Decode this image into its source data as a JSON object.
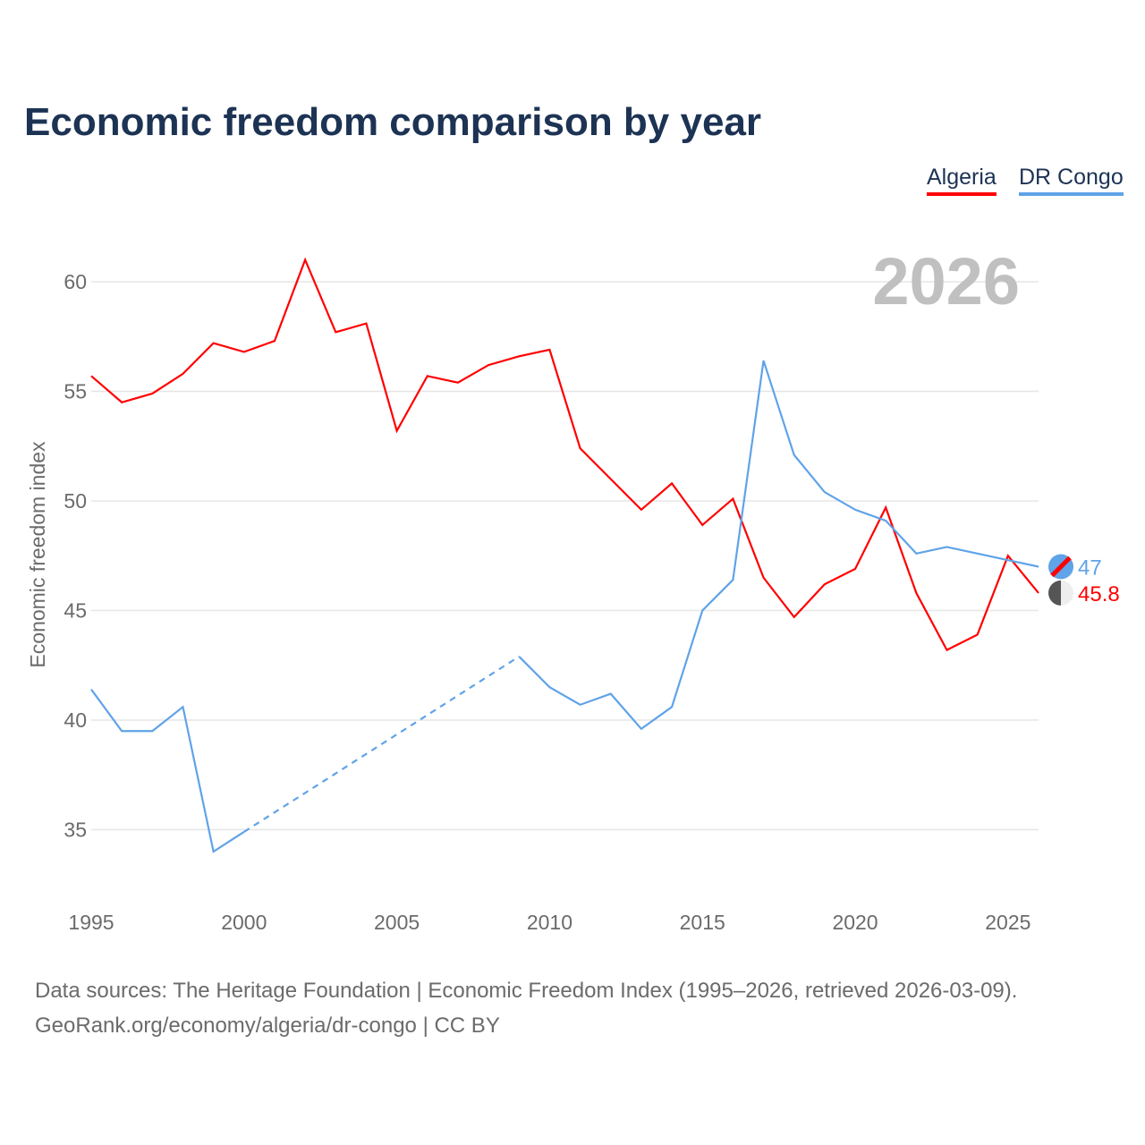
{
  "chart_data": {
    "type": "line",
    "title": "Economic freedom comparison by year",
    "ylabel": "Economic freedom index",
    "xlabel": "",
    "xlim": [
      1995,
      2026
    ],
    "ylim": [
      32.5,
      62
    ],
    "yticks": [
      35,
      40,
      45,
      50,
      55,
      60
    ],
    "xticks": [
      1995,
      2000,
      2005,
      2010,
      2015,
      2020,
      2025
    ],
    "grid": true,
    "legend_placement": "top-right",
    "year_watermark": "2026",
    "x": [
      1995,
      1996,
      1997,
      1998,
      1999,
      2000,
      2001,
      2002,
      2003,
      2004,
      2005,
      2006,
      2007,
      2008,
      2009,
      2010,
      2011,
      2012,
      2013,
      2014,
      2015,
      2016,
      2017,
      2018,
      2019,
      2020,
      2021,
      2022,
      2023,
      2024,
      2025,
      2026
    ],
    "series": [
      {
        "name": "Algeria",
        "color": "#ff0000",
        "end_label": "45.8",
        "values": [
          55.7,
          54.5,
          54.9,
          55.8,
          57.2,
          56.8,
          57.3,
          61.0,
          57.7,
          58.1,
          53.2,
          55.7,
          55.4,
          56.2,
          56.6,
          56.9,
          52.4,
          51.0,
          49.6,
          50.8,
          48.9,
          50.1,
          46.5,
          44.7,
          46.2,
          46.9,
          49.7,
          45.8,
          43.2,
          43.9,
          47.5,
          45.8
        ]
      },
      {
        "name": "DR Congo",
        "color": "#5fa3e8",
        "end_label": "47",
        "values": [
          41.4,
          39.5,
          39.5,
          40.6,
          34.0,
          34.9,
          null,
          null,
          null,
          null,
          null,
          null,
          null,
          null,
          42.9,
          41.5,
          40.7,
          41.2,
          39.6,
          40.6,
          45.0,
          46.4,
          56.4,
          52.1,
          50.4,
          49.6,
          49.1,
          47.6,
          47.9,
          47.6,
          47.3,
          47.0
        ]
      }
    ]
  },
  "footer": {
    "line1": "Data sources: The Heritage Foundation | Economic Freedom Index (1995–2026, retrieved 2026-03-09).",
    "line2": "GeoRank.org/economy/algeria/dr-congo | CC BY"
  }
}
